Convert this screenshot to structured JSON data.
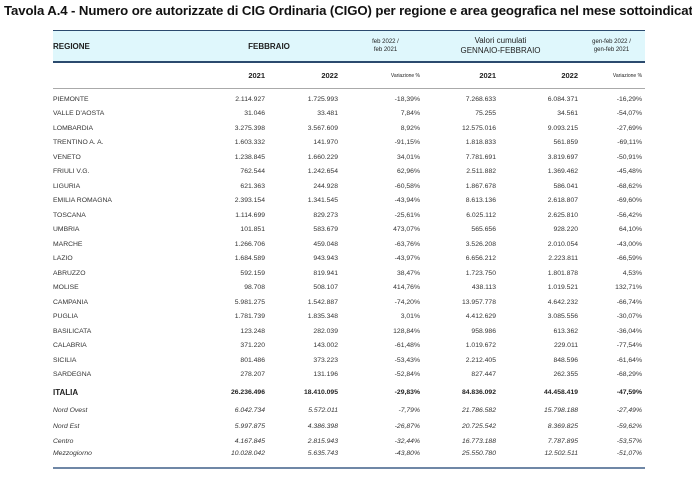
{
  "title": "Tavola A.4 - Numero ore autorizzate di CIG Ordinaria (CIGO) per regione e area geografica nel mese sottoindicato",
  "header": {
    "regione": "REGIONE",
    "febbraio": "FEBBRAIO",
    "var_month_1": "feb 2022 /",
    "var_month_2": "feb 2021",
    "cum_1": "Valori cumulati",
    "cum_2": "GENNAIO-FEBBRAIO",
    "var_cum_1": "gen-feb 2022 /",
    "var_cum_2": "gen-feb 2021"
  },
  "years": {
    "y1": "2021",
    "y2": "2022",
    "var": "Variazione %",
    "y3": "2021",
    "y4": "2022",
    "var2": "Variazione %"
  },
  "header_color": "#dff7fc",
  "regions": [
    [
      "PIEMONTE",
      "2.114.927",
      "1.725.993",
      "-18,39%",
      "7.268.633",
      "6.084.371",
      "-16,29%"
    ],
    [
      "VALLE D'AOSTA",
      "31.046",
      "33.481",
      "7,84%",
      "75.255",
      "34.561",
      "-54,07%"
    ],
    [
      "LOMBARDIA",
      "3.275.398",
      "3.567.609",
      "8,92%",
      "12.575.016",
      "9.093.215",
      "-27,69%"
    ],
    [
      "TRENTINO A. A.",
      "1.603.332",
      "141.970",
      "-91,15%",
      "1.818.833",
      "561.859",
      "-69,11%"
    ],
    [
      "VENETO",
      "1.238.845",
      "1.660.229",
      "34,01%",
      "7.781.691",
      "3.819.697",
      "-50,91%"
    ],
    [
      "FRIULI V.G.",
      "762.544",
      "1.242.654",
      "62,96%",
      "2.511.882",
      "1.369.462",
      "-45,48%"
    ],
    [
      "LIGURIA",
      "621.363",
      "244.928",
      "-60,58%",
      "1.867.678",
      "586.041",
      "-68,62%"
    ],
    [
      "EMILIA ROMAGNA",
      "2.393.154",
      "1.341.545",
      "-43,94%",
      "8.613.136",
      "2.618.807",
      "-69,60%"
    ],
    [
      "TOSCANA",
      "1.114.699",
      "829.273",
      "-25,61%",
      "6.025.112",
      "2.625.810",
      "-56,42%"
    ],
    [
      "UMBRIA",
      "101.851",
      "583.679",
      "473,07%",
      "565.656",
      "928.220",
      "64,10%"
    ],
    [
      "MARCHE",
      "1.266.706",
      "459.048",
      "-63,76%",
      "3.526.208",
      "2.010.054",
      "-43,00%"
    ],
    [
      "LAZIO",
      "1.684.589",
      "943.943",
      "-43,97%",
      "6.656.212",
      "2.223.811",
      "-66,59%"
    ],
    [
      "ABRUZZO",
      "592.159",
      "819.941",
      "38,47%",
      "1.723.750",
      "1.801.878",
      "4,53%"
    ],
    [
      "MOLISE",
      "98.708",
      "508.107",
      "414,76%",
      "438.113",
      "1.019.521",
      "132,71%"
    ],
    [
      "CAMPANIA",
      "5.981.275",
      "1.542.887",
      "-74,20%",
      "13.957.778",
      "4.642.232",
      "-66,74%"
    ],
    [
      "PUGLIA",
      "1.781.739",
      "1.835.348",
      "3,01%",
      "4.412.629",
      "3.085.556",
      "-30,07%"
    ],
    [
      "BASILICATA",
      "123.248",
      "282.039",
      "128,84%",
      "958.986",
      "613.362",
      "-36,04%"
    ],
    [
      "CALABRIA",
      "371.220",
      "143.002",
      "-61,48%",
      "1.019.672",
      "229.011",
      "-77,54%"
    ],
    [
      "SICILIA",
      "801.486",
      "373.223",
      "-53,43%",
      "2.212.405",
      "848.596",
      "-61,64%"
    ],
    [
      "SARDEGNA",
      "278.207",
      "131.196",
      "-52,84%",
      "827.447",
      "262.355",
      "-68,29%"
    ]
  ],
  "italia": [
    "ITALIA",
    "26.236.496",
    "18.410.095",
    "-29,83%",
    "84.836.092",
    "44.458.419",
    "-47,59%"
  ],
  "areas": [
    [
      "Nord Ovest",
      "6.042.734",
      "5.572.011",
      "-7,79%",
      "21.786.582",
      "15.798.188",
      "-27,49%"
    ],
    [
      "Nord Est",
      "5.997.875",
      "4.386.398",
      "-26,87%",
      "20.725.542",
      "8.369.825",
      "-59,62%"
    ],
    [
      "Centro",
      "4.167.845",
      "2.815.943",
      "-32,44%",
      "16.773.188",
      "7.787.895",
      "-53,57%"
    ],
    [
      "Mezzogiorno",
      "10.028.042",
      "5.635.743",
      "-43,80%",
      "25.550.780",
      "12.502.511",
      "-51,07%"
    ]
  ]
}
